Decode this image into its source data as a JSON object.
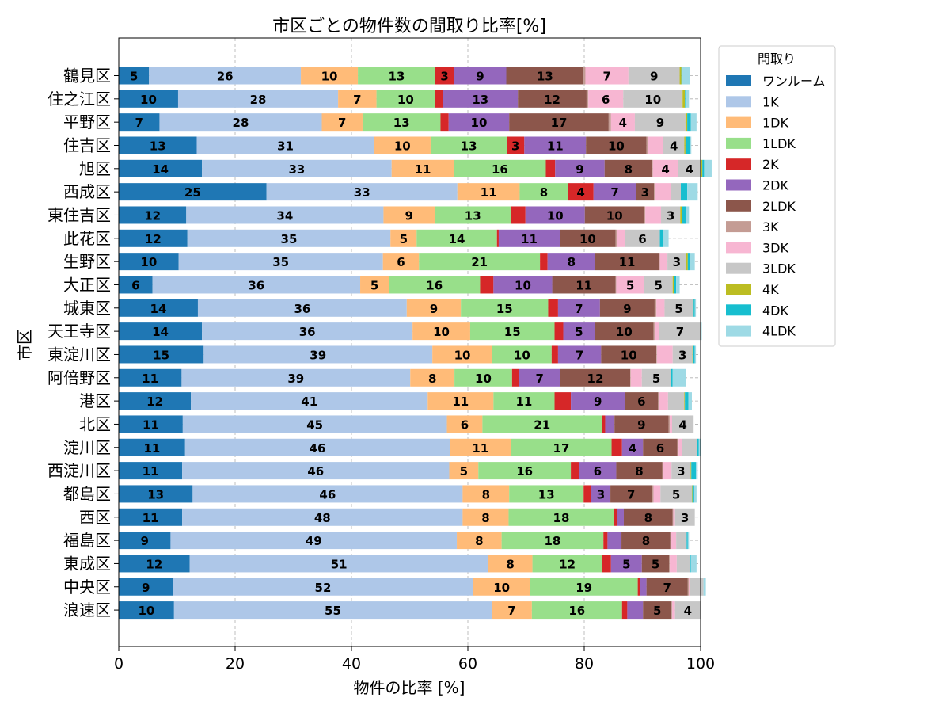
{
  "chart_data": {
    "type": "bar",
    "orientation": "horizontal",
    "stacked": true,
    "title": "市区ごとの物件数の間取り比率[%]",
    "xlabel": "物件の比率 [%]",
    "ylabel": "市区",
    "xlim": [
      0,
      100
    ],
    "xticks": [
      0,
      20,
      40,
      60,
      80,
      100
    ],
    "grid": true,
    "legend_title": "間取り",
    "legend_position": "outside-right",
    "categories": [
      "鶴見区",
      "住之江区",
      "平野区",
      "住吉区",
      "旭区",
      "西成区",
      "東住吉区",
      "此花区",
      "生野区",
      "大正区",
      "城東区",
      "天王寺区",
      "東淀川区",
      "阿倍野区",
      "港区",
      "北区",
      "淀川区",
      "西淀川区",
      "都島区",
      "西区",
      "福島区",
      "東成区",
      "中央区",
      "浪速区"
    ],
    "series": [
      {
        "name": "ワンルーム",
        "color": "#1f77b4",
        "values": [
          5.2,
          10.2,
          7.0,
          13.4,
          14.3,
          25.4,
          11.6,
          11.8,
          10.3,
          5.8,
          13.6,
          14.3,
          14.6,
          10.8,
          12.4,
          11.0,
          11.4,
          10.9,
          12.7,
          10.9,
          8.9,
          12.2,
          9.3,
          9.5
        ]
      },
      {
        "name": "1K",
        "color": "#aec7e8",
        "values": [
          26.1,
          27.5,
          27.9,
          30.5,
          32.6,
          32.8,
          33.9,
          34.9,
          35.1,
          35.7,
          35.9,
          36.2,
          39.3,
          39.3,
          40.7,
          45.4,
          45.5,
          45.9,
          46.4,
          48.2,
          49.2,
          51.3,
          51.6,
          54.6
        ]
      },
      {
        "name": "1DK",
        "color": "#ffbb78",
        "values": [
          9.8,
          6.6,
          7.0,
          9.7,
          10.7,
          10.7,
          8.8,
          4.5,
          6.2,
          4.9,
          9.3,
          9.9,
          10.3,
          7.6,
          11.3,
          6.1,
          10.5,
          5.0,
          8.0,
          7.9,
          7.7,
          7.6,
          9.8,
          6.9
        ]
      },
      {
        "name": "1LDK",
        "color": "#98df8a",
        "values": [
          13.3,
          10.0,
          13.4,
          13.1,
          15.8,
          8.3,
          13.1,
          13.8,
          20.8,
          15.7,
          15.0,
          14.5,
          10.2,
          9.9,
          10.5,
          20.5,
          17.3,
          15.9,
          12.8,
          18.1,
          17.5,
          12.0,
          18.5,
          15.5
        ]
      },
      {
        "name": "2K",
        "color": "#d62728",
        "values": [
          3.2,
          1.4,
          1.4,
          3.0,
          1.6,
          4.4,
          2.5,
          0.3,
          1.3,
          2.3,
          1.7,
          1.5,
          1.1,
          1.2,
          2.8,
          0.6,
          1.8,
          1.4,
          1.3,
          0.6,
          0.7,
          1.5,
          0.4,
          0.9
        ]
      },
      {
        "name": "2DK",
        "color": "#9467bd",
        "values": [
          9.0,
          12.9,
          10.4,
          10.6,
          8.5,
          7.3,
          10.2,
          10.5,
          8.2,
          10.1,
          7.2,
          5.4,
          7.4,
          7.1,
          9.3,
          1.6,
          3.6,
          6.4,
          3.3,
          1.1,
          2.4,
          5.3,
          1.1,
          2.7
        ]
      },
      {
        "name": "2LDK",
        "color": "#8c564b",
        "values": [
          13.3,
          11.8,
          17.1,
          10.4,
          8.2,
          3.1,
          10.2,
          9.6,
          10.9,
          10.9,
          9.4,
          10.1,
          9.5,
          12.0,
          5.7,
          9.3,
          5.9,
          7.9,
          7.1,
          8.4,
          8.4,
          4.7,
          7.1,
          4.9
        ]
      },
      {
        "name": "3K",
        "color": "#c49c94",
        "values": [
          0.3,
          0.3,
          0.4,
          0.3,
          0.1,
          0.2,
          0.2,
          0.3,
          0.2,
          0.1,
          0.3,
          0.2,
          0.1,
          0.1,
          0.2,
          0.2,
          0.2,
          0.2,
          0.3,
          0.1,
          0.1,
          0.1,
          0.2,
          0.1
        ]
      },
      {
        "name": "3DK",
        "color": "#f7b6d2",
        "values": [
          7.4,
          6.0,
          4.1,
          2.6,
          4.3,
          2.7,
          2.7,
          1.3,
          1.3,
          4.8,
          1.4,
          0.8,
          2.7,
          1.9,
          1.5,
          0.4,
          0.6,
          1.4,
          1.2,
          0.3,
          0.9,
          1.2,
          0.2,
          0.5
        ]
      },
      {
        "name": "3LDK",
        "color": "#c7c7c7",
        "values": [
          8.8,
          10.2,
          8.7,
          3.6,
          3.9,
          1.7,
          3.3,
          6.0,
          3.2,
          4.9,
          4.9,
          7.1,
          3.4,
          5.0,
          2.8,
          3.7,
          2.6,
          3.3,
          5.4,
          3.4,
          1.8,
          2.2,
          2.3,
          4.4
        ]
      },
      {
        "name": "4K",
        "color": "#bcbd22",
        "values": [
          0.3,
          0.4,
          0.3,
          0.2,
          0.3,
          0.0,
          0.3,
          0.0,
          0.3,
          0.3,
          0.1,
          0.0,
          0.1,
          0.0,
          0.1,
          0.0,
          0.0,
          0.1,
          0.1,
          0.0,
          0.0,
          0.0,
          0.0,
          0.0
        ]
      },
      {
        "name": "4DK",
        "color": "#17becf",
        "values": [
          0.2,
          0.1,
          0.6,
          0.7,
          0.3,
          1.1,
          0.7,
          0.6,
          0.4,
          0.3,
          0.2,
          0.0,
          0.3,
          0.3,
          0.6,
          0.0,
          0.3,
          0.8,
          0.3,
          0.0,
          0.2,
          0.2,
          0.0,
          0.0
        ]
      },
      {
        "name": "4LDK",
        "color": "#9edae5",
        "values": [
          1.3,
          0.6,
          1.0,
          0.3,
          1.3,
          1.8,
          0.5,
          0.9,
          0.8,
          0.6,
          0.2,
          0.2,
          0.2,
          2.3,
          0.6,
          0.0,
          0.3,
          0.3,
          0.4,
          0.0,
          0.2,
          1.0,
          0.4,
          0.0
        ]
      }
    ]
  }
}
